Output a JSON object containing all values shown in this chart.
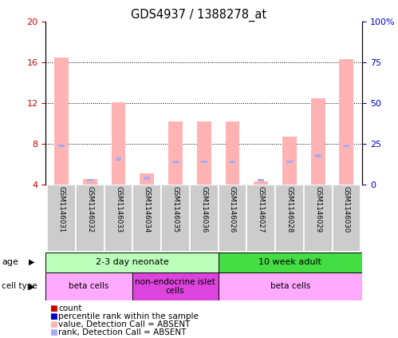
{
  "title": "GDS4937 / 1388278_at",
  "samples": [
    "GSM1146031",
    "GSM1146032",
    "GSM1146033",
    "GSM1146034",
    "GSM1146035",
    "GSM1146036",
    "GSM1146026",
    "GSM1146027",
    "GSM1146028",
    "GSM1146029",
    "GSM1146030"
  ],
  "pink_bar_heights": [
    16.5,
    4.5,
    12.1,
    5.1,
    10.2,
    10.2,
    10.2,
    4.3,
    8.7,
    12.5,
    16.3
  ],
  "blue_dot_heights": [
    7.8,
    4.4,
    6.5,
    4.6,
    6.2,
    6.2,
    6.2,
    4.4,
    6.2,
    6.8,
    7.8
  ],
  "ylim_left": [
    4,
    20
  ],
  "ylim_right": [
    0,
    100
  ],
  "yticks_left": [
    4,
    8,
    12,
    16,
    20
  ],
  "ytick_labels_left": [
    "4",
    "8",
    "12",
    "16",
    "20"
  ],
  "yticks_right": [
    0,
    25,
    50,
    75,
    100
  ],
  "ytick_labels_right": [
    "0",
    "25",
    "50",
    "75",
    "100%"
  ],
  "bar_width": 0.5,
  "pink_color": "#ffb3b3",
  "blue_color": "#aaaaee",
  "red_square_color": "#cc0000",
  "blue_square_color": "#0000cc",
  "age_row": [
    {
      "label": "2-3 day neonate",
      "start": 0,
      "end": 6,
      "color": "#bbffbb"
    },
    {
      "label": "10 week adult",
      "start": 6,
      "end": 11,
      "color": "#44dd44"
    }
  ],
  "cell_type_row": [
    {
      "label": "beta cells",
      "start": 0,
      "end": 3,
      "color": "#ffaaff"
    },
    {
      "label": "non-endocrine islet\ncells",
      "start": 3,
      "end": 6,
      "color": "#dd44dd"
    },
    {
      "label": "beta cells",
      "start": 6,
      "end": 11,
      "color": "#ffaaff"
    }
  ],
  "legend_items": [
    {
      "color": "#cc0000",
      "label": "count"
    },
    {
      "color": "#0000cc",
      "label": "percentile rank within the sample"
    },
    {
      "color": "#ffb3b3",
      "label": "value, Detection Call = ABSENT"
    },
    {
      "color": "#aaaaee",
      "label": "rank, Detection Call = ABSENT"
    }
  ],
  "left_axis_color": "#cc0000",
  "right_axis_color": "#0000cc",
  "sample_bg_color": "#cccccc",
  "sample_border_color": "#999999"
}
